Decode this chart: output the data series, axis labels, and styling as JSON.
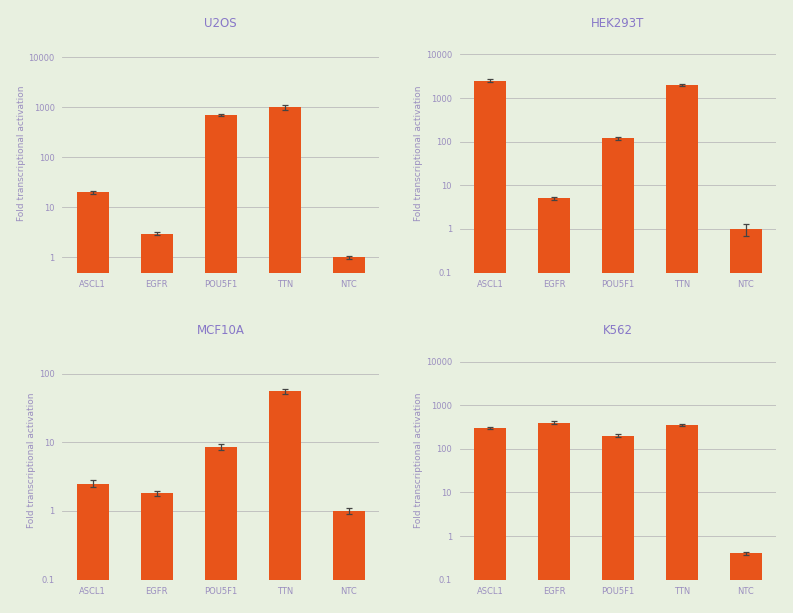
{
  "subplots": [
    {
      "title": "U2OS",
      "categories": [
        "ASCL1",
        "EGFR",
        "POU5F1",
        "TTN",
        "NTC"
      ],
      "values": [
        20,
        3,
        700,
        1000,
        1.0
      ],
      "errors_low": [
        1.2,
        0.25,
        25,
        100,
        0.05
      ],
      "errors_high": [
        1.2,
        0.25,
        25,
        100,
        0.05
      ],
      "ylim": [
        0.5,
        30000
      ],
      "yticks": [
        1,
        10,
        100,
        1000,
        10000
      ],
      "yticklabels": [
        "1",
        "10",
        "100",
        "1000",
        "10000"
      ],
      "extra_gridline": 0
    },
    {
      "title": "HEK293T",
      "categories": [
        "ASCL1",
        "EGFR",
        "POU5F1",
        "TTN",
        "NTC"
      ],
      "values": [
        2500,
        5,
        120,
        2000,
        1.0
      ],
      "errors_low": [
        200,
        0.4,
        8,
        80,
        0.3
      ],
      "errors_high": [
        200,
        0.4,
        8,
        80,
        0.3
      ],
      "ylim": [
        0.1,
        30000
      ],
      "yticks": [
        0.1,
        1,
        10,
        100,
        1000,
        10000
      ],
      "yticklabels": [
        "0.1",
        "1",
        "10",
        "100",
        "1000",
        "10000"
      ],
      "extra_gridline": 0
    },
    {
      "title": "MCF10A",
      "categories": [
        "ASCL1",
        "EGFR",
        "POU5F1",
        "TTN",
        "NTC"
      ],
      "values": [
        2.5,
        1.8,
        8.5,
        55,
        1.0
      ],
      "errors_low": [
        0.3,
        0.15,
        0.9,
        4,
        0.1
      ],
      "errors_high": [
        0.3,
        0.15,
        0.9,
        4,
        0.1
      ],
      "ylim": [
        0.1,
        300
      ],
      "yticks": [
        0.1,
        1,
        10,
        100
      ],
      "yticklabels": [
        "0.1",
        "1",
        "10",
        "100"
      ],
      "extra_gridline": 0
    },
    {
      "title": "K562",
      "categories": [
        "ASCL1",
        "EGFR",
        "POU5F1",
        "TTN",
        "NTC"
      ],
      "values": [
        300,
        400,
        200,
        350,
        0.4
      ],
      "errors_low": [
        20,
        25,
        15,
        20,
        0.04
      ],
      "errors_high": [
        20,
        25,
        15,
        20,
        0.04
      ],
      "ylim": [
        0.1,
        30000
      ],
      "yticks": [
        0.1,
        1,
        10,
        100,
        1000,
        10000
      ],
      "yticklabels": [
        "0.1",
        "1",
        "10",
        "100",
        "1000",
        "10000"
      ],
      "extra_gridline": 0
    }
  ],
  "bar_color": "#E8541A",
  "error_color": "#444444",
  "ylabel": "Fold transcriptional activation",
  "figure_bg_color": "#E8F0E0",
  "plot_bg_color": "#E8F0E0",
  "grid_color": "#BBBBBB",
  "title_color": "#8878C8",
  "axis_label_color": "#9B8FC0",
  "tick_label_color": "#9B8FC0",
  "title_fontsize": 8.5,
  "ylabel_fontsize": 6.5,
  "tick_fontsize": 6.0,
  "xtick_fontsize": 6.0,
  "bar_width": 0.5
}
